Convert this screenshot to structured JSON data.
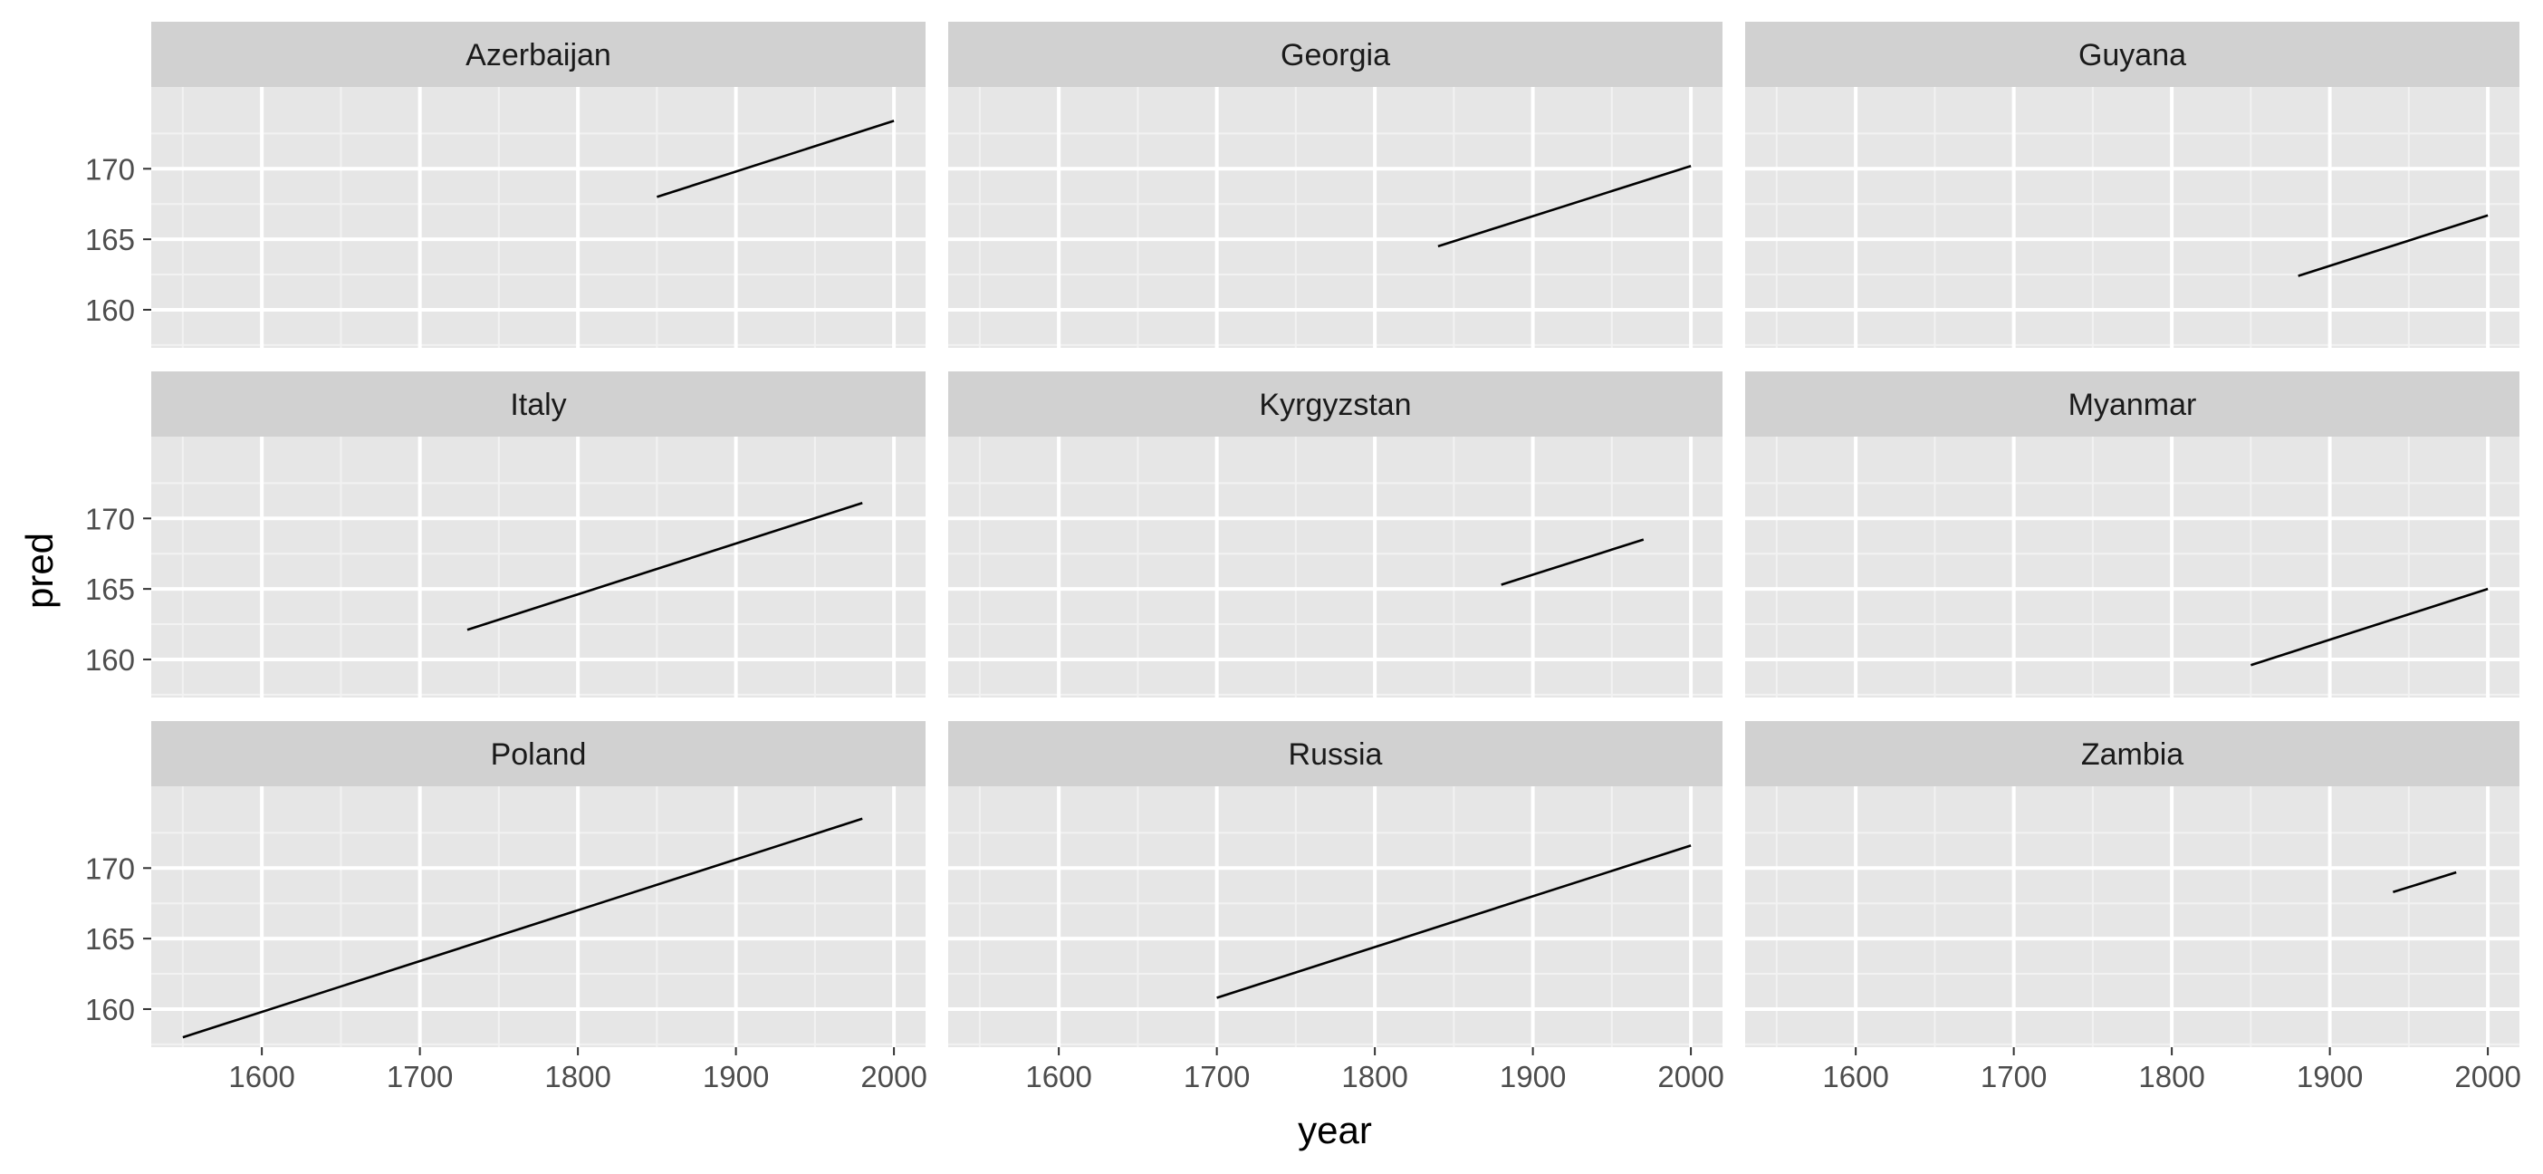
{
  "chart_data": {
    "type": "line",
    "xlabel": "year",
    "ylabel": "pred",
    "xlim": [
      1530,
      2020
    ],
    "ylim": [
      157.3,
      175.8
    ],
    "x_ticks": [
      1600,
      1700,
      1800,
      1900,
      2000
    ],
    "y_ticks": [
      160,
      165,
      170
    ],
    "x_tick_labels": [
      "1600",
      "1700",
      "1800",
      "1900",
      "2000"
    ],
    "y_tick_labels": [
      "160",
      "165",
      "170"
    ],
    "grid": true,
    "facets": [
      {
        "name": "Azerbaijan",
        "x": [
          1850,
          2000
        ],
        "y": [
          168.0,
          173.4
        ]
      },
      {
        "name": "Georgia",
        "x": [
          1840,
          2000
        ],
        "y": [
          164.5,
          170.2
        ]
      },
      {
        "name": "Guyana",
        "x": [
          1880,
          2000
        ],
        "y": [
          162.4,
          166.7
        ]
      },
      {
        "name": "Italy",
        "x": [
          1730,
          1980
        ],
        "y": [
          162.1,
          171.1
        ]
      },
      {
        "name": "Kyrgyzstan",
        "x": [
          1880,
          1970
        ],
        "y": [
          165.3,
          168.5
        ]
      },
      {
        "name": "Myanmar",
        "x": [
          1850,
          2000
        ],
        "y": [
          159.6,
          165.0
        ]
      },
      {
        "name": "Poland",
        "x": [
          1550,
          1980
        ],
        "y": [
          158.0,
          173.5
        ]
      },
      {
        "name": "Russia",
        "x": [
          1700,
          2000
        ],
        "y": [
          160.8,
          171.6
        ]
      },
      {
        "name": "Zambia",
        "x": [
          1940,
          1980
        ],
        "y": [
          168.3,
          169.7
        ]
      }
    ],
    "colors": {
      "panel_background": "#e6e6e6",
      "strip_background": "#d1d1d1",
      "grid_major": "#ffffff",
      "grid_minor": "#f2f2f2",
      "line": "#000000"
    }
  }
}
